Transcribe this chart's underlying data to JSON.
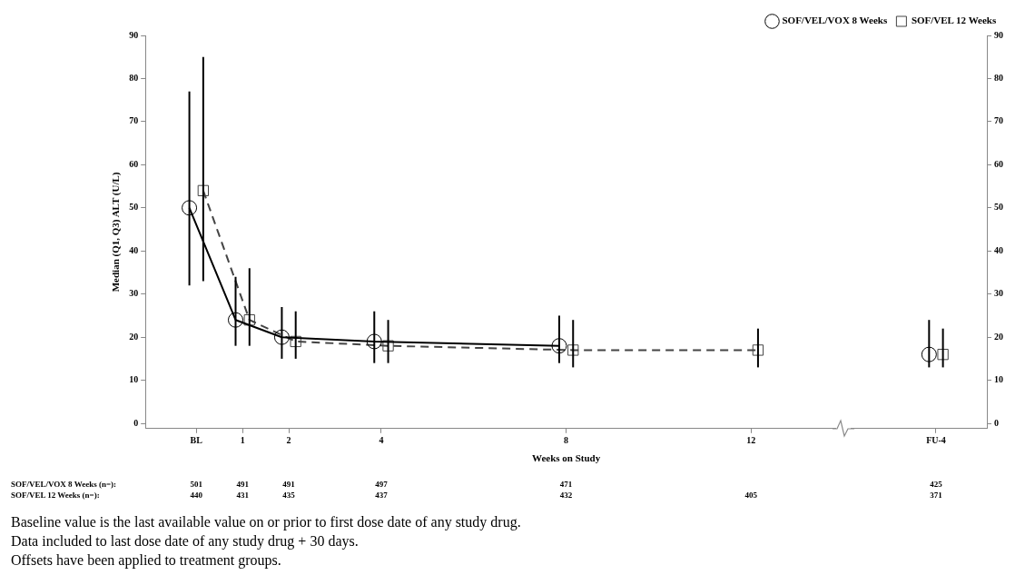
{
  "chart_data": {
    "type": "line",
    "xlabel": "Weeks on Study",
    "ylabel": "Median (Q1, Q3) ALT (U/L)",
    "xlim": [
      -1.1,
      17.1
    ],
    "xticks": [
      {
        "value": 0,
        "label": "BL"
      },
      1,
      2,
      4,
      8,
      12,
      {
        "value": 16,
        "label": "FU-4"
      }
    ],
    "ylim": [
      -1.2,
      90
    ],
    "yticks": [
      0,
      10,
      20,
      30,
      40,
      50,
      60,
      70,
      80,
      90
    ],
    "y2lim": [
      -1.2,
      90
    ],
    "y2ticks": [
      0,
      10,
      20,
      30,
      40,
      50,
      60,
      70,
      80,
      90
    ],
    "legend": "top right",
    "series": [
      {
        "name": "SOF/VEL/VOX 8 Weeks",
        "color": "#000000",
        "marker": "circle",
        "line_style": "solid",
        "x": [
          -0.15,
          0.85,
          1.85,
          3.85,
          7.85
        ],
        "values": [
          50,
          24,
          20,
          19,
          18
        ],
        "errors": [
          [
            32,
            77
          ],
          [
            18,
            34
          ],
          [
            15,
            27
          ],
          [
            14,
            26
          ],
          [
            14,
            25
          ]
        ]
      },
      {
        "name": "SOF/VEL 12 Weeks",
        "color": "#444444",
        "marker": "square",
        "line_style": "dashed",
        "x": [
          0.15,
          1.15,
          2.15,
          4.15,
          8.15,
          12.15
        ],
        "values": [
          54,
          24,
          19,
          18,
          17,
          17
        ],
        "errors": [
          [
            33,
            85
          ],
          [
            18,
            36
          ],
          [
            15,
            26
          ],
          [
            14,
            24
          ],
          [
            13,
            24
          ],
          [
            13,
            22
          ]
        ]
      },
      {
        "type": "scatter",
        "color": "#000000",
        "marker": "circle",
        "x": [
          15.85
        ],
        "values": [
          16
        ],
        "errors": [
          [
            13,
            24
          ]
        ]
      },
      {
        "type": "scatter",
        "color": "#444444",
        "marker": "square",
        "x": [
          16.15
        ],
        "values": [
          16
        ],
        "errors": [
          [
            13,
            22
          ]
        ]
      }
    ],
    "annotations": [
      "SOF/VEL/VOX 8 Weeks (n=):",
      "501",
      "491",
      "491",
      "497",
      "471",
      "425",
      "SOF/VEL 12 Weeks (n=):",
      "440",
      "431",
      "435",
      "437",
      "432",
      "405",
      "371",
      "Baseline value is the last available value on or prior to first dose date of any study drug.",
      "Data included to last dose date of any study drug + 30 days.",
      "Offsets have been applied to treatment groups."
    ]
  }
}
